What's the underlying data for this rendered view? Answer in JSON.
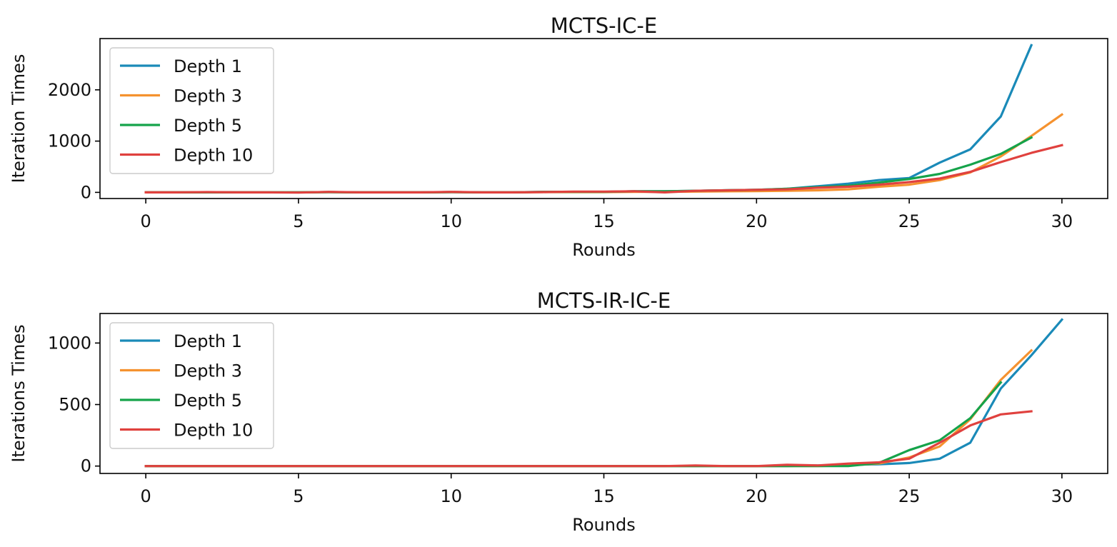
{
  "chart_data": [
    {
      "type": "line",
      "title": "MCTS-IC-E",
      "xlabel": "Rounds",
      "ylabel": "Iteration Times",
      "xlim": [
        -1.5,
        31.5
      ],
      "ylim": [
        -120,
        3000
      ],
      "xticks": [
        0,
        5,
        10,
        15,
        20,
        25,
        30
      ],
      "yticks": [
        0,
        1000,
        2000
      ],
      "legend_position": "upper-left",
      "grid": false,
      "series": [
        {
          "name": "Depth 1",
          "color": "#1a8ab8",
          "x": [
            0,
            1,
            2,
            3,
            4,
            5,
            6,
            7,
            8,
            9,
            10,
            11,
            12,
            13,
            14,
            15,
            16,
            17,
            18,
            19,
            20,
            21,
            22,
            23,
            24,
            25,
            26,
            27,
            28,
            29
          ],
          "y": [
            0,
            0,
            0,
            0,
            0,
            0,
            5,
            0,
            0,
            0,
            5,
            0,
            0,
            10,
            10,
            10,
            20,
            20,
            30,
            40,
            50,
            70,
            120,
            170,
            240,
            280,
            580,
            840,
            1480,
            2870
          ]
        },
        {
          "name": "Depth 3",
          "color": "#f5922f",
          "x": [
            0,
            1,
            2,
            3,
            4,
            5,
            6,
            7,
            8,
            9,
            10,
            11,
            12,
            13,
            14,
            15,
            16,
            17,
            18,
            19,
            20,
            21,
            22,
            23,
            24,
            25,
            26,
            27,
            28,
            29,
            30
          ],
          "y": [
            0,
            0,
            0,
            0,
            0,
            0,
            5,
            0,
            0,
            0,
            5,
            0,
            0,
            5,
            5,
            5,
            10,
            10,
            15,
            20,
            25,
            30,
            40,
            60,
            110,
            150,
            240,
            390,
            700,
            1100,
            1520
          ]
        },
        {
          "name": "Depth 5",
          "color": "#15a34a",
          "x": [
            0,
            1,
            2,
            3,
            4,
            5,
            6,
            7,
            8,
            9,
            10,
            11,
            12,
            13,
            14,
            15,
            16,
            17,
            18,
            19,
            20,
            21,
            22,
            23,
            24,
            25,
            26,
            27,
            28,
            29
          ],
          "y": [
            0,
            0,
            0,
            0,
            0,
            0,
            5,
            0,
            0,
            0,
            5,
            0,
            0,
            10,
            10,
            10,
            20,
            20,
            30,
            40,
            50,
            70,
            100,
            130,
            190,
            260,
            360,
            540,
            750,
            1070
          ]
        },
        {
          "name": "Depth 10",
          "color": "#e0413e",
          "x": [
            0,
            1,
            2,
            3,
            4,
            5,
            6,
            7,
            8,
            9,
            10,
            11,
            12,
            13,
            14,
            15,
            16,
            17,
            18,
            19,
            20,
            21,
            22,
            23,
            24,
            25,
            26,
            27,
            28,
            29,
            30
          ],
          "y": [
            0,
            0,
            5,
            0,
            0,
            -5,
            10,
            0,
            0,
            0,
            10,
            0,
            0,
            5,
            15,
            15,
            20,
            0,
            30,
            40,
            50,
            60,
            90,
            110,
            150,
            200,
            270,
            400,
            590,
            770,
            920
          ]
        }
      ]
    },
    {
      "type": "line",
      "title": "MCTS-IR-IC-E",
      "xlabel": "Rounds",
      "ylabel": "Iterations Times",
      "xlim": [
        -1.5,
        31.5
      ],
      "ylim": [
        -60,
        1240
      ],
      "xticks": [
        0,
        5,
        10,
        15,
        20,
        25,
        30
      ],
      "yticks": [
        0,
        500,
        1000
      ],
      "legend_position": "upper-left",
      "grid": false,
      "series": [
        {
          "name": "Depth 1",
          "color": "#1a8ab8",
          "x": [
            0,
            1,
            2,
            3,
            4,
            5,
            6,
            7,
            8,
            9,
            10,
            11,
            12,
            13,
            14,
            15,
            16,
            17,
            18,
            19,
            20,
            21,
            22,
            23,
            24,
            25,
            26,
            27,
            28,
            29,
            30
          ],
          "y": [
            0,
            0,
            0,
            0,
            0,
            0,
            0,
            0,
            0,
            0,
            0,
            0,
            0,
            0,
            0,
            0,
            0,
            0,
            0,
            0,
            0,
            0,
            5,
            10,
            15,
            25,
            60,
            190,
            630,
            900,
            1190
          ]
        },
        {
          "name": "Depth 3",
          "color": "#f5922f",
          "x": [
            0,
            1,
            2,
            3,
            4,
            5,
            6,
            7,
            8,
            9,
            10,
            11,
            12,
            13,
            14,
            15,
            16,
            17,
            18,
            19,
            20,
            21,
            22,
            23,
            24,
            25,
            26,
            27,
            28,
            29
          ],
          "y": [
            0,
            0,
            0,
            0,
            0,
            0,
            0,
            0,
            0,
            0,
            0,
            0,
            0,
            0,
            0,
            0,
            0,
            0,
            0,
            0,
            0,
            0,
            0,
            5,
            20,
            70,
            160,
            380,
            700,
            940
          ]
        },
        {
          "name": "Depth 5",
          "color": "#15a34a",
          "x": [
            0,
            1,
            2,
            3,
            4,
            5,
            6,
            7,
            8,
            9,
            10,
            11,
            12,
            13,
            14,
            15,
            16,
            17,
            18,
            19,
            20,
            21,
            22,
            23,
            24,
            25,
            26,
            27,
            28
          ],
          "y": [
            0,
            0,
            0,
            0,
            0,
            0,
            0,
            0,
            0,
            0,
            0,
            0,
            0,
            0,
            0,
            0,
            0,
            0,
            0,
            0,
            0,
            0,
            0,
            0,
            25,
            130,
            210,
            390,
            680
          ]
        },
        {
          "name": "Depth 10",
          "color": "#e0413e",
          "x": [
            0,
            1,
            2,
            3,
            4,
            5,
            6,
            7,
            8,
            9,
            10,
            11,
            12,
            13,
            14,
            15,
            16,
            17,
            18,
            19,
            20,
            21,
            22,
            23,
            24,
            25,
            26,
            27,
            28,
            29
          ],
          "y": [
            0,
            0,
            0,
            0,
            0,
            0,
            0,
            0,
            0,
            0,
            0,
            0,
            0,
            0,
            0,
            0,
            0,
            0,
            5,
            0,
            0,
            10,
            5,
            20,
            30,
            60,
            190,
            330,
            420,
            445
          ]
        }
      ]
    }
  ]
}
